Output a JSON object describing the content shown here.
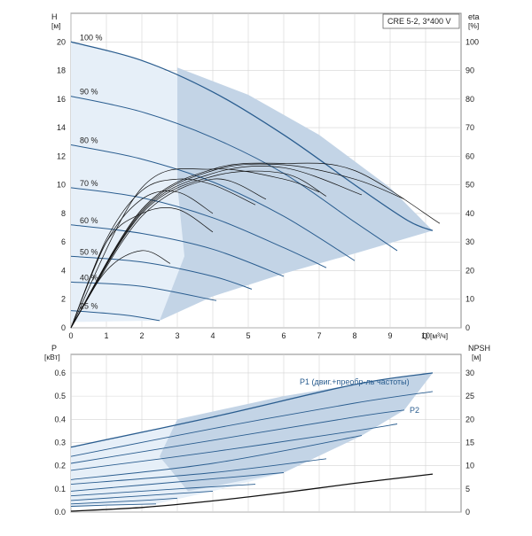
{
  "chart_data": [
    {
      "type": "line",
      "title": "CRE 5-2, 3*400 V",
      "left_axis": {
        "label": "H",
        "unit": "[м]",
        "range": [
          0,
          22
        ],
        "ticks": [
          0,
          2,
          4,
          6,
          8,
          10,
          12,
          14,
          16,
          18,
          20
        ]
      },
      "right_axis": {
        "label": "eta",
        "unit": "[%]",
        "range": [
          0,
          110
        ],
        "ticks": [
          0,
          10,
          20,
          30,
          40,
          50,
          60,
          70,
          80,
          90,
          100
        ]
      },
      "x_axis": {
        "label": "Q [м³/ч]",
        "range": [
          0,
          11
        ],
        "ticks": [
          0,
          1,
          2,
          3,
          4,
          5,
          6,
          7,
          8,
          9,
          10
        ]
      },
      "grid": true,
      "head_curves": [
        {
          "name": "100 %",
          "x": [
            0,
            2,
            4,
            6,
            8,
            9.5,
            10.2
          ],
          "y": [
            20.0,
            18.7,
            16.5,
            13.5,
            10.0,
            7.5,
            6.8
          ]
        },
        {
          "name": "90 %",
          "x": [
            0,
            2,
            4,
            6,
            8,
            9.2
          ],
          "y": [
            16.2,
            15.1,
            13.3,
            10.8,
            7.4,
            5.4
          ]
        },
        {
          "name": "80 %",
          "x": [
            0,
            2,
            4,
            6,
            8
          ],
          "y": [
            12.8,
            11.8,
            10.2,
            7.8,
            4.7
          ]
        },
        {
          "name": "70 %",
          "x": [
            0,
            2,
            4,
            6,
            7.2
          ],
          "y": [
            9.8,
            9.1,
            7.7,
            5.6,
            4.2
          ]
        },
        {
          "name": "60 %",
          "x": [
            0,
            2,
            4,
            6
          ],
          "y": [
            7.2,
            6.6,
            5.5,
            3.6
          ]
        },
        {
          "name": "50 %",
          "x": [
            0,
            2,
            4,
            5.1
          ],
          "y": [
            5.0,
            4.6,
            3.6,
            2.7
          ]
        },
        {
          "name": "40 %",
          "x": [
            0,
            2,
            4.1
          ],
          "y": [
            3.2,
            2.9,
            1.9
          ]
        },
        {
          "name": "25 %",
          "x": [
            0,
            1.5,
            2.5
          ],
          "y": [
            1.2,
            0.9,
            0.5
          ]
        }
      ],
      "eff_curves": [
        {
          "x": [
            0,
            1,
            2,
            2.8
          ],
          "y": [
            0,
            4,
            5.4,
            4.5
          ]
        },
        {
          "x": [
            0,
            1,
            2,
            3,
            4
          ],
          "y": [
            0,
            6,
            8,
            8.3,
            6.7
          ]
        },
        {
          "x": [
            0,
            2,
            4,
            5.5
          ],
          "y": [
            0,
            7.8,
            10.4,
            9
          ]
        },
        {
          "x": [
            0,
            2,
            4,
            6,
            7.2
          ],
          "y": [
            0,
            8,
            10.6,
            10.8,
            9.2
          ]
        },
        {
          "x": [
            0,
            2,
            4,
            6,
            8.2
          ],
          "y": [
            0,
            8.1,
            10.8,
            11.2,
            9.3
          ]
        },
        {
          "x": [
            0,
            2,
            4,
            6,
            8,
            9.4
          ],
          "y": [
            0,
            8.2,
            11,
            11.4,
            10.4,
            9
          ]
        },
        {
          "x": [
            0,
            2,
            4,
            6,
            8,
            10.4
          ],
          "y": [
            0,
            8.3,
            11.1,
            11.5,
            11,
            7.3
          ]
        },
        {
          "x": [
            0,
            1,
            2,
            3,
            4
          ],
          "y": [
            0,
            6,
            9,
            9.5,
            8
          ]
        },
        {
          "x": [
            0,
            1,
            2,
            3,
            4,
            5.2
          ],
          "y": [
            0,
            6.2,
            9.6,
            10.4,
            10,
            8.6
          ]
        },
        {
          "x": [
            0,
            2,
            4,
            6,
            7
          ],
          "y": [
            0,
            9.8,
            11.1,
            10.4,
            9.5
          ]
        }
      ],
      "labels": [
        "100 %",
        "90 %",
        "80 %",
        "70 %",
        "60 %",
        "50 %",
        "40 %",
        "25 %"
      ]
    },
    {
      "type": "line",
      "left_axis": {
        "label": "P",
        "unit": "[кВт]",
        "range": [
          0,
          0.68
        ],
        "ticks": [
          "0.0",
          "0.1",
          "0.2",
          "0.3",
          "0.4",
          "0.5",
          "0.6"
        ]
      },
      "right_axis": {
        "label": "NPSH",
        "unit": "[м]",
        "range": [
          0,
          34
        ],
        "ticks": [
          0,
          5,
          10,
          15,
          20,
          25,
          30
        ]
      },
      "x_axis": {
        "range": [
          0,
          11
        ]
      },
      "grid": true,
      "series_labels": [
        "P1 (двиг.+преобр-ль частоты)",
        "P2"
      ],
      "power_curves": [
        {
          "x": [
            0,
            4,
            8,
            10.2
          ],
          "y": [
            0.28,
            0.41,
            0.55,
            0.6
          ]
        },
        {
          "x": [
            0,
            4,
            8,
            10.2
          ],
          "y": [
            0.24,
            0.36,
            0.47,
            0.52
          ]
        },
        {
          "x": [
            0,
            4,
            8,
            9.4
          ],
          "y": [
            0.21,
            0.31,
            0.41,
            0.44
          ]
        },
        {
          "x": [
            0,
            4,
            8,
            9.2
          ],
          "y": [
            0.18,
            0.26,
            0.35,
            0.38
          ]
        },
        {
          "x": [
            0,
            4,
            8.2
          ],
          "y": [
            0.14,
            0.21,
            0.33
          ]
        },
        {
          "x": [
            0,
            4,
            7.2
          ],
          "y": [
            0.12,
            0.17,
            0.23
          ]
        },
        {
          "x": [
            0,
            3,
            6
          ],
          "y": [
            0.09,
            0.13,
            0.17
          ]
        },
        {
          "x": [
            0,
            3,
            5.2
          ],
          "y": [
            0.07,
            0.1,
            0.12
          ]
        },
        {
          "x": [
            0,
            2,
            4
          ],
          "y": [
            0.05,
            0.07,
            0.09
          ]
        },
        {
          "x": [
            0,
            2,
            3
          ],
          "y": [
            0.035,
            0.05,
            0.06
          ]
        },
        {
          "x": [
            0,
            1,
            2.4
          ],
          "y": [
            0.025,
            0.03,
            0.035
          ]
        }
      ],
      "npsh_curve": {
        "x": [
          0,
          2,
          4,
          6,
          8,
          10.2
        ],
        "y": [
          0.2,
          1.0,
          2.4,
          4.2,
          6.2,
          8.2
        ]
      }
    }
  ]
}
